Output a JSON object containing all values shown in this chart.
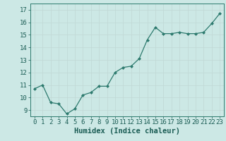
{
  "x": [
    0,
    1,
    2,
    3,
    4,
    5,
    6,
    7,
    8,
    9,
    10,
    11,
    12,
    13,
    14,
    15,
    16,
    17,
    18,
    19,
    20,
    21,
    22,
    23
  ],
  "y": [
    10.7,
    11.0,
    9.6,
    9.5,
    8.7,
    9.1,
    10.2,
    10.4,
    10.9,
    10.9,
    12.0,
    12.4,
    12.5,
    13.1,
    14.6,
    15.6,
    15.1,
    15.1,
    15.2,
    15.1,
    15.1,
    15.2,
    15.9,
    16.7
  ],
  "xlabel": "Humidex (Indice chaleur)",
  "ylim": [
    8.5,
    17.5
  ],
  "xlim": [
    -0.5,
    23.5
  ],
  "yticks": [
    9,
    10,
    11,
    12,
    13,
    14,
    15,
    16,
    17
  ],
  "xticks": [
    0,
    1,
    2,
    3,
    4,
    5,
    6,
    7,
    8,
    9,
    10,
    11,
    12,
    13,
    14,
    15,
    16,
    17,
    18,
    19,
    20,
    21,
    22,
    23
  ],
  "line_color": "#2d7a6e",
  "marker_color": "#2d7a6e",
  "bg_color": "#cce8e5",
  "grid_color": "#c0d8d5",
  "xlabel_fontsize": 7.5,
  "tick_fontsize": 6.5
}
